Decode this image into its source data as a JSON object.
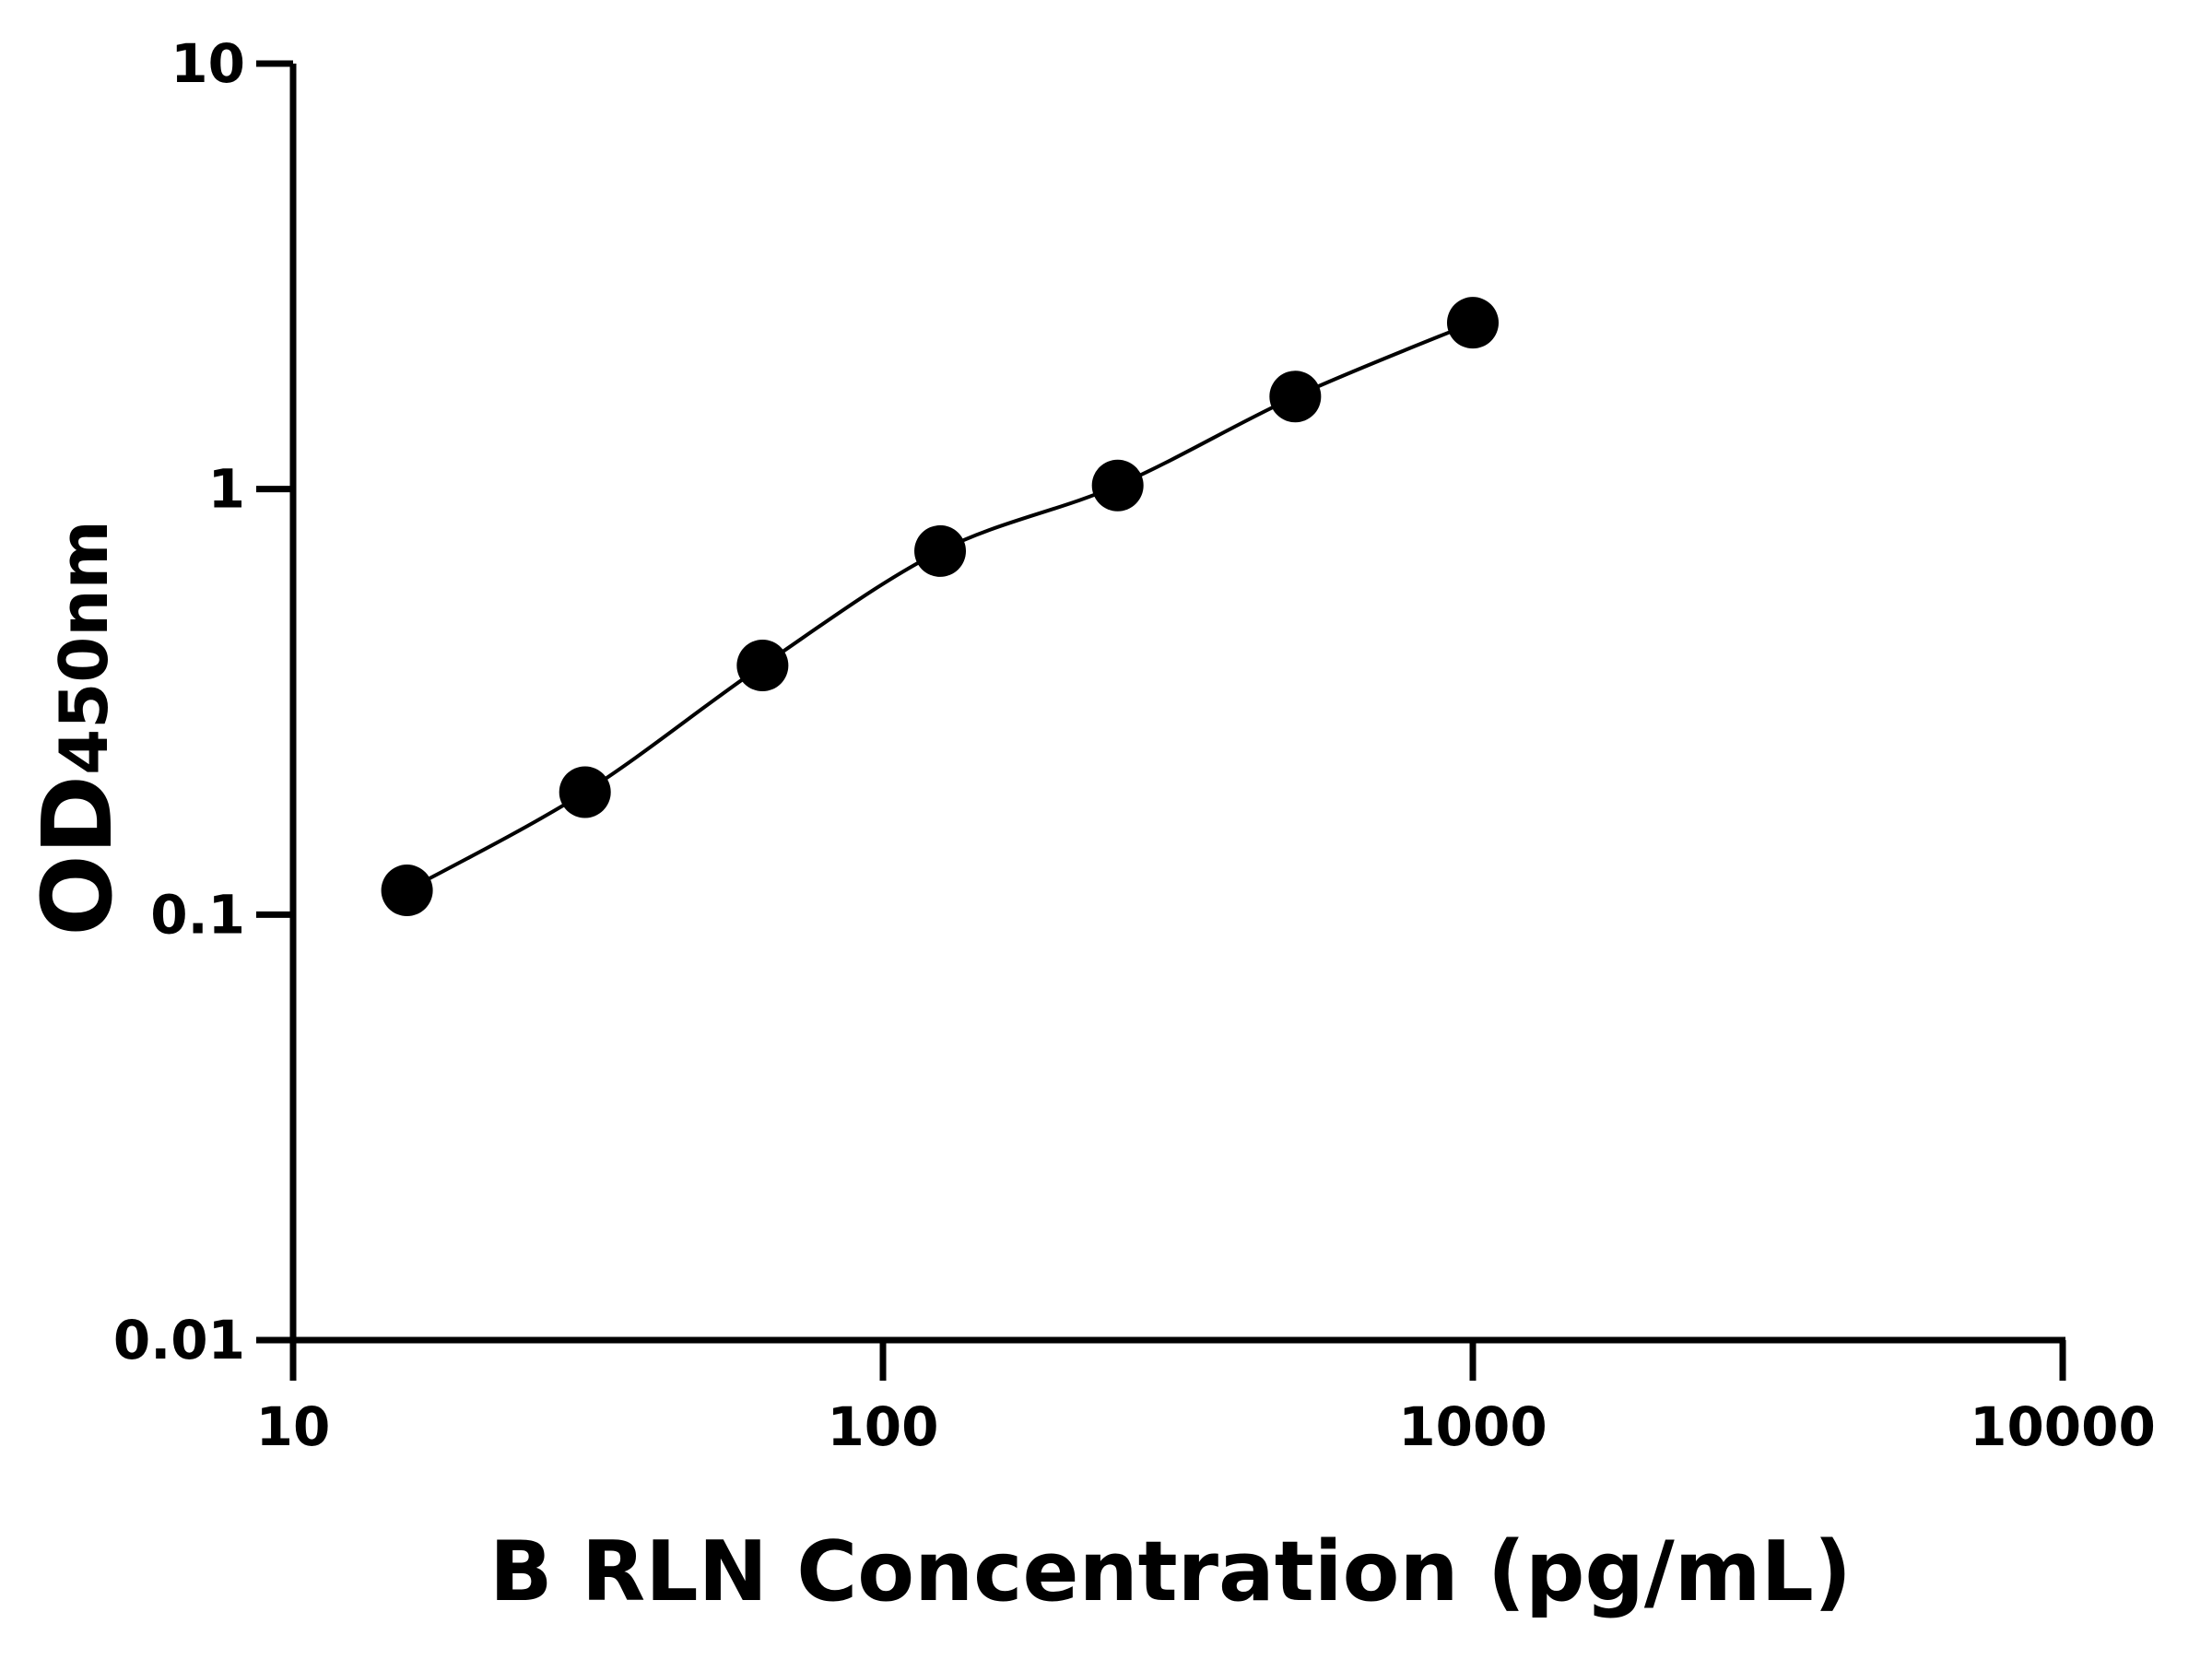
{
  "chart_data": {
    "type": "scatter",
    "x_label": "B RLN Concentration (pg/mL)",
    "y_label": "OD",
    "y_label_subscript": "450nm",
    "log_x": true,
    "log_y": true,
    "xlim": [
      10,
      10000
    ],
    "xticks": [
      10,
      100,
      1000,
      10000
    ],
    "ylim": [
      0.01,
      10
    ],
    "yticks": [
      0.01,
      0.1,
      1,
      10
    ],
    "fit_curve": true,
    "series": [
      {
        "color": "#000000",
        "x": [
          15.6,
          31.25,
          62.5,
          125,
          250,
          500,
          1000
        ],
        "values": [
          0.114,
          0.194,
          0.385,
          0.715,
          1.02,
          1.65,
          2.46
        ]
      }
    ]
  }
}
